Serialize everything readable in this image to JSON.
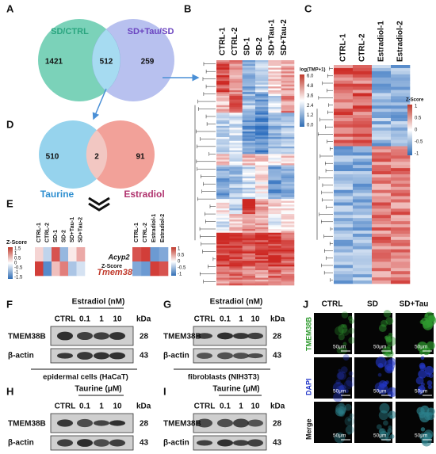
{
  "panels": {
    "A": {
      "label": "A",
      "sets": [
        "SD/CTRL",
        "SD+Tau/SD"
      ],
      "counts": [
        "1421",
        "512",
        "259"
      ]
    },
    "D": {
      "label": "D",
      "sets": [
        "Taurine",
        "Estradiol"
      ],
      "counts": [
        "510",
        "2",
        "91"
      ]
    },
    "E": {
      "label": "E",
      "left": {
        "columns": [
          "CTRL-1",
          "CTRL-2",
          "SD-1",
          "SD-2",
          "SD+Tau-1",
          "SD+Tau-2"
        ],
        "scale_title": "Z-Score",
        "scale": [
          "1.5",
          "1",
          "0.5",
          "0",
          "-0.5",
          "-1",
          "-1.5"
        ]
      },
      "genes": [
        "Acyp2",
        "Tmem38b"
      ],
      "right": {
        "columns": [
          "CTRL-1",
          "CTRL-2",
          "Estradiol-1",
          "Estradiol-2"
        ],
        "scale_title": "Z-Score",
        "scale": [
          "1",
          "0.5",
          "0",
          "-0.5",
          "-1"
        ]
      }
    },
    "B": {
      "label": "B",
      "columns": [
        "CTRL-1",
        "CTRL-2",
        "SD-1",
        "SD-2",
        "SD+Tau-1",
        "SD+Tau-2"
      ],
      "scale_title": "log(TMP+1)",
      "scale": [
        "6.0",
        "4.8",
        "3.6",
        "2.4",
        "1.2",
        "0.0"
      ]
    },
    "C": {
      "label": "C",
      "columns": [
        "CTRL-1",
        "CTRL-2",
        "Estradiol-1",
        "Estradiol-2"
      ],
      "scale_title": "Z-Score",
      "scale": [
        "1",
        "0.5",
        "0",
        "-0.5",
        "-1"
      ]
    },
    "blots": [
      {
        "label": "F",
        "treatment": "Estradiol (nM)",
        "doses": [
          "CTRL",
          "0.1",
          "1",
          "10"
        ],
        "unit": "kDa",
        "bands": [
          {
            "name": "TMEM38B",
            "kda": "28"
          },
          {
            "name": "β-actin",
            "kda": "43"
          }
        ],
        "cells": "epidermal cells (HaCaT)"
      },
      {
        "label": "G",
        "treatment": "Estradiol (nM)",
        "doses": [
          "CTRL",
          "0.1",
          "1",
          "10"
        ],
        "unit": "kDa",
        "bands": [
          {
            "name": "TMEM38B",
            "kda": "28"
          },
          {
            "name": "β-actin",
            "kda": "43"
          }
        ],
        "cells": "fibroblasts (NIH3T3)"
      },
      {
        "label": "H",
        "treatment": "Taurine (μM)",
        "doses": [
          "CTRL",
          "0.1",
          "1",
          "10"
        ],
        "unit": "kDa",
        "bands": [
          {
            "name": "TMEM38B",
            "kda": "28"
          },
          {
            "name": "β-actin",
            "kda": "43"
          }
        ],
        "cells": "epidermal cells (HaCaT)"
      },
      {
        "label": "I",
        "treatment": "Taurine (μM)",
        "doses": [
          "CTRL",
          "0.1",
          "1",
          "10"
        ],
        "unit": "kDa",
        "bands": [
          {
            "name": "TMEM38B",
            "kda": "28"
          },
          {
            "name": "β-actin",
            "kda": "43"
          }
        ],
        "cells": "fibroblasts (NIH3T3)"
      }
    ],
    "J": {
      "label": "J",
      "columns": [
        "CTRL",
        "SD",
        "SD+Tau"
      ],
      "rows": [
        "TMEM38B",
        "DAPI",
        "Merge"
      ],
      "scale_bar": "50μm"
    }
  }
}
